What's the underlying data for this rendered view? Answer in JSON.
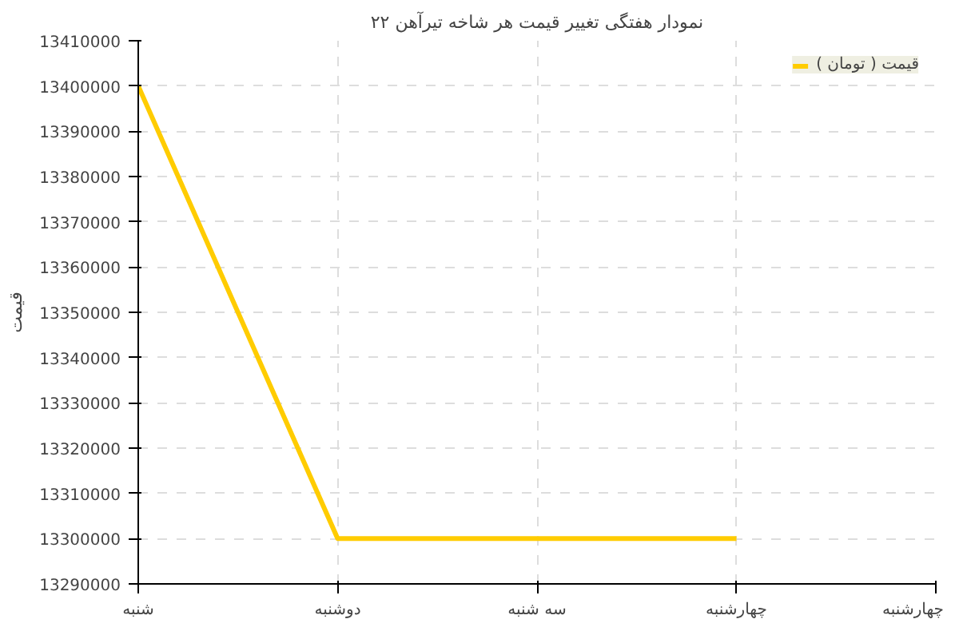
{
  "chart_data": {
    "type": "line",
    "title": "نمودار هفتگی تغییر قیمت هر شاخه تیرآهن ۲۲",
    "ylabel": "قیمت",
    "categories": [
      "شنبه",
      "دوشنبه",
      "سه شنبه",
      "چهارشنبه",
      "چهارشنبه"
    ],
    "series": [
      {
        "name": "قیمت ( تومان )",
        "color": "#ffcc00",
        "values": [
          13400000,
          13300000,
          13300000,
          13300000,
          null
        ]
      }
    ],
    "ylim": [
      13290000,
      13410000
    ],
    "yticks": [
      13290000,
      13300000,
      13310000,
      13320000,
      13330000,
      13340000,
      13350000,
      13360000,
      13370000,
      13380000,
      13390000,
      13400000,
      13410000
    ],
    "grid": true,
    "legend": "top right",
    "marker": "none",
    "line_style": "solid"
  }
}
